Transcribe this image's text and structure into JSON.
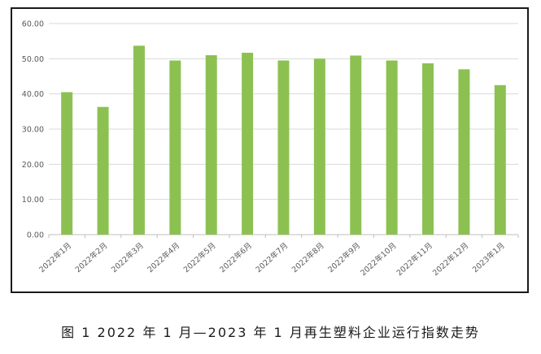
{
  "caption": "图 1  2022 年 1 月—2023 年 1 月再生塑料企业运行指数走势",
  "colors": {
    "bar": "#8cc152",
    "grid": "#d9d9d9",
    "axis": "#bfbfbf",
    "text": "#595959",
    "frame": "#1a1a1a"
  },
  "chart_data": {
    "type": "bar",
    "categories": [
      "2022年1月",
      "2022年2月",
      "2022年3月",
      "2022年4月",
      "2022年5月",
      "2022年6月",
      "2022年7月",
      "2022年8月",
      "2022年9月",
      "2022年10月",
      "2022年11月",
      "2022年12月",
      "2023年1月"
    ],
    "values": [
      40.5,
      36.3,
      53.7,
      49.5,
      51.0,
      51.7,
      49.5,
      50.0,
      50.9,
      49.5,
      48.7,
      47.0,
      42.5
    ],
    "yticks": [
      "0.00",
      "10.00",
      "20.00",
      "30.00",
      "40.00",
      "50.00",
      "60.00"
    ],
    "ylim": [
      0,
      60
    ],
    "title": "",
    "xlabel": "",
    "ylabel": "",
    "grid": true,
    "legend": "none"
  }
}
